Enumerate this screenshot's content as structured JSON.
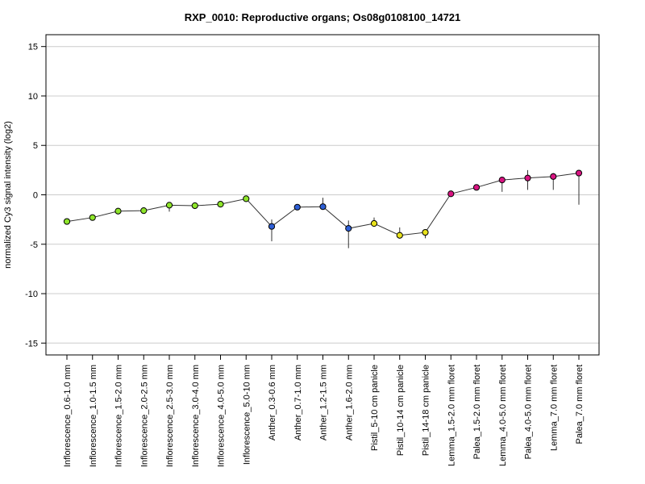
{
  "chart_data": {
    "type": "line",
    "title": "RXP_0010: Reproductive organs; Os08g0108100_14721",
    "xlabel": "",
    "ylabel": "normalized Cy3 signal intensity (log2)",
    "ylim": [
      -16.2,
      16.2
    ],
    "yticks": [
      -15,
      -10,
      -5,
      0,
      5,
      10,
      15
    ],
    "grid": true,
    "categories": [
      "Inflorescence_0.6-1.0 mm",
      "Inflorescence_1.0-1.5 mm",
      "Inflorescence_1.5-2.0 mm",
      "Inflorescence_2.0-2.5 mm",
      "Inflorescence_2.5-3.0 mm",
      "Inflorescence_3.0-4.0 mm",
      "Inflorescence_4.0-5.0 mm",
      "Inflorescence_5.0-10 mm",
      "Anther_0.3-0.6 mm",
      "Anther_0.7-1.0 mm",
      "Anther_1.2-1.5 mm",
      "Anther_1.6-2.0 mm",
      "Pistil_5-10 cm panicle",
      "Pistil_10-14 cm panicle",
      "Pistil_14-18 cm panicle",
      "Lemma_1.5-2.0 mm floret",
      "Palea_1.5-2.0 mm floret",
      "Lemma_4.0-5.0 mm floret",
      "Palea_4.0-5.0 mm floret",
      "Lemma_7.0 mm floret",
      "Palea_7.0 mm floret"
    ],
    "values": [
      -2.7,
      -2.3,
      -1.65,
      -1.6,
      -1.05,
      -1.1,
      -0.95,
      -0.4,
      -3.2,
      -1.25,
      -1.2,
      -3.4,
      -2.9,
      -4.1,
      -3.8,
      0.1,
      0.75,
      1.5,
      1.7,
      1.85,
      2.2
    ],
    "error_low": [
      -2.7,
      -2.3,
      -1.65,
      -1.6,
      -1.7,
      -1.1,
      -0.95,
      -0.5,
      -4.7,
      -1.25,
      -1.2,
      -5.4,
      -3.2,
      -4.1,
      -4.4,
      0.1,
      0.75,
      0.3,
      0.5,
      0.5,
      -1.0
    ],
    "error_high": [
      -2.7,
      -2.3,
      -1.65,
      -1.6,
      -0.8,
      -1.1,
      -0.95,
      -0.2,
      -2.5,
      -1.25,
      -0.3,
      -2.6,
      -2.3,
      -3.3,
      -3.5,
      0.1,
      0.75,
      1.6,
      2.5,
      2.2,
      2.2
    ],
    "point_colors": [
      "#8ee52a",
      "#8ee52a",
      "#8ee52a",
      "#8ee52a",
      "#8ee52a",
      "#8ee52a",
      "#8ee52a",
      "#8ee52a",
      "#2e5fd6",
      "#2e5fd6",
      "#2e5fd6",
      "#2e5fd6",
      "#e8e21c",
      "#e8e21c",
      "#e8e21c",
      "#d91482",
      "#d91482",
      "#d91482",
      "#d91482",
      "#d91482",
      "#d91482"
    ],
    "line_color": "#333333",
    "grid_color": "#cccccc"
  }
}
